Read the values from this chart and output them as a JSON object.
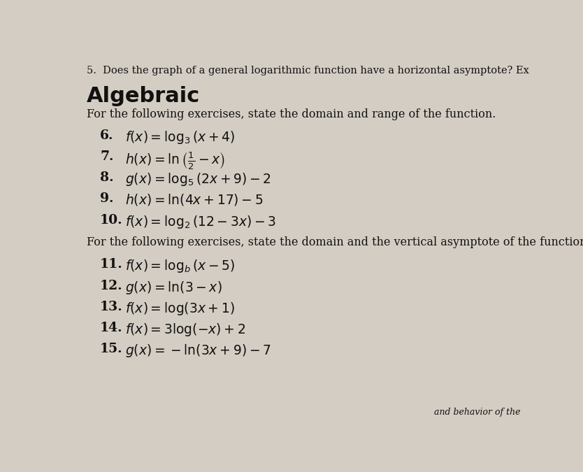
{
  "background_color": "#d4cdc3",
  "title_question": "5.  Does the graph of a general logarithmic function have a horizontal asymptote? Ex",
  "section_title": "Algebraic",
  "section_title_fontsize": 22,
  "intro1": "For the following exercises, state the domain and range of the function.",
  "intro2": "For the following exercises, state the domain and the vertical asymptote of the function.",
  "exercises_group1": [
    {
      "num": "6.",
      "text": "$f(x) = \\log_3(x+4)$"
    },
    {
      "num": "7.",
      "text": "$h(x) = \\ln\\left(\\frac{1}{2} - x\\right)$"
    },
    {
      "num": "8.",
      "text": "$g(x) = \\log_5(2x+9) - 2$"
    },
    {
      "num": "9.",
      "text": "$h(x) = \\ln(4x+17) - 5$"
    },
    {
      "num": "10.",
      "text": "$f(x) = \\log_2(12-3x) - 3$"
    }
  ],
  "exercises_group2": [
    {
      "num": "11.",
      "text": "$f(x) = \\log_b(x-5)$"
    },
    {
      "num": "12.",
      "text": "$g(x) = \\ln(3-x)$"
    },
    {
      "num": "13.",
      "text": "$f(x) = \\log(3x+1)$"
    },
    {
      "num": "14.",
      "text": "$f(x) = 3\\log(-x)+2$"
    },
    {
      "num": "15.",
      "text": "$g(x) = -\\ln(3x+9)-7$"
    }
  ],
  "text_color": "#111111",
  "intro_fontsize": 11.5,
  "exercise_fontsize": 13.5,
  "title_fontsize": 10.5,
  "bottom_text": "and behavior of the"
}
